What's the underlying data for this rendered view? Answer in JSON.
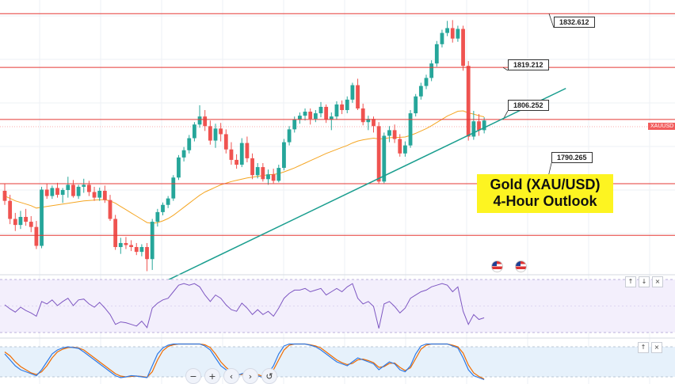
{
  "title": {
    "line1": "Gold (XAU/USD)",
    "line2": "4-Hour Outlook"
  },
  "symbol": "XAUUSD",
  "levels": [
    {
      "value": 1832.612,
      "label": "1832.612"
    },
    {
      "value": 1819.212,
      "label": "1819.212"
    },
    {
      "value": 1806.252,
      "label": "1806.252"
    },
    {
      "value": 1790.265,
      "label": "1790.265"
    },
    {
      "value": 1777.4,
      "label": ""
    }
  ],
  "colors": {
    "up": "#26a69a",
    "down": "#ef5350",
    "level": "#e53935",
    "trendline": "#1a9e8f",
    "ma": "#f5a623",
    "rsi": "#7e57c2",
    "stoch_k": "#2f7ae5",
    "stoch_d": "#ef6c00"
  },
  "nav_buttons": [
    {
      "name": "zoom-out-button",
      "icon": "minus-icon",
      "glyph": "−"
    },
    {
      "name": "zoom-in-button",
      "icon": "plus-icon",
      "glyph": "+"
    },
    {
      "name": "scroll-left-button",
      "icon": "chevron-left-icon",
      "glyph": "‹"
    },
    {
      "name": "scroll-right-button",
      "icon": "chevron-right-icon",
      "glyph": "›"
    },
    {
      "name": "reset-button",
      "icon": "reset-icon",
      "glyph": "↺"
    }
  ],
  "pane_buttons": {
    "up": "↑",
    "down": "↓",
    "close": "×"
  },
  "chart_data": {
    "type": "candlestick",
    "price_range": [
      1768,
      1836
    ],
    "candles": [
      [
        1788.5,
        1790.2,
        1785.0,
        1786.0
      ],
      [
        1786.0,
        1787.5,
        1780.2,
        1781.5
      ],
      [
        1781.5,
        1783.0,
        1778.5,
        1780.0
      ],
      [
        1780.0,
        1783.5,
        1779.0,
        1782.0
      ],
      [
        1782.0,
        1784.0,
        1779.8,
        1780.8
      ],
      [
        1780.8,
        1782.2,
        1778.2,
        1779.5
      ],
      [
        1779.5,
        1781.0,
        1774.0,
        1774.8
      ],
      [
        1774.8,
        1789.5,
        1774.2,
        1788.8
      ],
      [
        1788.8,
        1790.2,
        1786.5,
        1787.2
      ],
      [
        1787.2,
        1789.8,
        1786.5,
        1789.2
      ],
      [
        1789.2,
        1790.5,
        1786.8,
        1787.5
      ],
      [
        1787.5,
        1789.2,
        1785.5,
        1788.7
      ],
      [
        1788.7,
        1792.0,
        1786.8,
        1790.0
      ],
      [
        1790.0,
        1791.2,
        1786.8,
        1787.2
      ],
      [
        1787.2,
        1790.0,
        1786.5,
        1789.5
      ],
      [
        1789.5,
        1791.5,
        1788.0,
        1790.0
      ],
      [
        1790.0,
        1791.0,
        1787.2,
        1788.2
      ],
      [
        1788.2,
        1789.5,
        1786.0,
        1786.8
      ],
      [
        1786.8,
        1789.3,
        1786.0,
        1788.5
      ],
      [
        1788.5,
        1789.8,
        1785.5,
        1786.2
      ],
      [
        1786.2,
        1787.5,
        1781.0,
        1781.5
      ],
      [
        1781.5,
        1782.5,
        1773.8,
        1774.5
      ],
      [
        1774.5,
        1776.8,
        1772.8,
        1775.5
      ],
      [
        1775.5,
        1777.0,
        1774.0,
        1775.0
      ],
      [
        1775.0,
        1776.2,
        1773.5,
        1774.5
      ],
      [
        1774.5,
        1775.5,
        1772.5,
        1773.3
      ],
      [
        1773.3,
        1775.2,
        1772.2,
        1774.5
      ],
      [
        1774.5,
        1775.5,
        1768.5,
        1771.5
      ],
      [
        1771.5,
        1781.5,
        1768.8,
        1780.8
      ],
      [
        1780.8,
        1784.0,
        1779.6,
        1783.2
      ],
      [
        1783.2,
        1785.6,
        1782.4,
        1785.0
      ],
      [
        1785.0,
        1787.2,
        1784.2,
        1786.6
      ],
      [
        1786.6,
        1792.4,
        1786.0,
        1791.8
      ],
      [
        1791.8,
        1797.4,
        1791.2,
        1796.8
      ],
      [
        1796.8,
        1799.4,
        1795.8,
        1798.6
      ],
      [
        1798.6,
        1802.4,
        1797.8,
        1801.6
      ],
      [
        1801.6,
        1805.6,
        1800.8,
        1805.0
      ],
      [
        1805.0,
        1809.8,
        1804.2,
        1807.0
      ],
      [
        1807.0,
        1808.6,
        1803.4,
        1804.6
      ],
      [
        1804.6,
        1806.0,
        1800.0,
        1801.0
      ],
      [
        1801.0,
        1805.2,
        1799.2,
        1804.0
      ],
      [
        1804.0,
        1805.4,
        1800.8,
        1802.6
      ],
      [
        1802.6,
        1803.8,
        1797.8,
        1798.8
      ],
      [
        1798.8,
        1800.6,
        1795.0,
        1796.2
      ],
      [
        1796.2,
        1797.6,
        1794.0,
        1795.0
      ],
      [
        1795.0,
        1801.6,
        1794.4,
        1800.4
      ],
      [
        1800.4,
        1802.0,
        1795.6,
        1796.6
      ],
      [
        1796.6,
        1797.8,
        1791.4,
        1792.4
      ],
      [
        1792.4,
        1795.4,
        1791.6,
        1794.4
      ],
      [
        1794.4,
        1795.4,
        1790.8,
        1791.4
      ],
      [
        1791.4,
        1793.8,
        1790.0,
        1792.6
      ],
      [
        1792.6,
        1794.0,
        1790.4,
        1791.0
      ],
      [
        1791.0,
        1795.0,
        1790.6,
        1794.2
      ],
      [
        1794.2,
        1801.4,
        1793.6,
        1800.6
      ],
      [
        1800.6,
        1804.6,
        1799.8,
        1803.8
      ],
      [
        1803.8,
        1807.0,
        1803.0,
        1806.2
      ],
      [
        1806.2,
        1808.0,
        1805.2,
        1807.2
      ],
      [
        1807.2,
        1809.0,
        1806.0,
        1808.2
      ],
      [
        1808.2,
        1809.0,
        1805.0,
        1806.4
      ],
      [
        1806.4,
        1808.6,
        1805.6,
        1807.8
      ],
      [
        1807.8,
        1810.6,
        1806.8,
        1809.4
      ],
      [
        1809.4,
        1810.0,
        1805.4,
        1806.2
      ],
      [
        1806.2,
        1808.0,
        1803.6,
        1807.0
      ],
      [
        1807.0,
        1810.8,
        1806.2,
        1810.0
      ],
      [
        1810.0,
        1811.0,
        1807.6,
        1808.6
      ],
      [
        1808.6,
        1812.0,
        1807.8,
        1811.2
      ],
      [
        1811.2,
        1815.4,
        1810.4,
        1814.8
      ],
      [
        1814.8,
        1816.4,
        1808.6,
        1809.0
      ],
      [
        1809.0,
        1810.2,
        1804.8,
        1805.6
      ],
      [
        1805.6,
        1807.2,
        1803.6,
        1806.4
      ],
      [
        1806.4,
        1807.0,
        1803.0,
        1804.6
      ],
      [
        1804.6,
        1805.6,
        1790.2,
        1790.8
      ],
      [
        1790.8,
        1803.0,
        1790.4,
        1802.2
      ],
      [
        1802.2,
        1804.6,
        1800.6,
        1803.6
      ],
      [
        1803.6,
        1805.0,
        1800.4,
        1801.4
      ],
      [
        1801.4,
        1802.6,
        1797.0,
        1797.8
      ],
      [
        1797.8,
        1800.8,
        1797.0,
        1799.8
      ],
      [
        1799.8,
        1808.6,
        1799.2,
        1807.8
      ],
      [
        1807.8,
        1812.6,
        1807.0,
        1812.0
      ],
      [
        1812.0,
        1815.4,
        1811.2,
        1814.6
      ],
      [
        1814.6,
        1817.4,
        1813.8,
        1816.6
      ],
      [
        1816.6,
        1821.0,
        1815.8,
        1820.2
      ],
      [
        1820.2,
        1825.8,
        1819.4,
        1825.0
      ],
      [
        1825.0,
        1828.6,
        1824.2,
        1827.8
      ],
      [
        1827.8,
        1830.8,
        1827.0,
        1829.0
      ],
      [
        1829.0,
        1831.0,
        1825.4,
        1826.4
      ],
      [
        1826.4,
        1829.6,
        1825.6,
        1828.8
      ],
      [
        1828.8,
        1829.6,
        1818.4,
        1819.6
      ],
      [
        1819.6,
        1820.8,
        1801.0,
        1802.0
      ],
      [
        1802.0,
        1808.4,
        1801.2,
        1805.8
      ],
      [
        1805.8,
        1807.6,
        1802.2,
        1803.6
      ],
      [
        1803.6,
        1806.8,
        1802.8,
        1806.0
      ]
    ],
    "ma": [
      1787.2,
      1786.6,
      1786.0,
      1785.6,
      1785.2,
      1784.8,
      1784.2,
      1784.4,
      1784.6,
      1784.8,
      1785.0,
      1785.2,
      1785.4,
      1785.6,
      1785.8,
      1786.0,
      1786.1,
      1786.2,
      1786.3,
      1786.3,
      1786.0,
      1785.4,
      1784.6,
      1783.8,
      1783.0,
      1782.2,
      1781.4,
      1780.6,
      1780.4,
      1780.6,
      1781.0,
      1781.6,
      1782.4,
      1783.4,
      1784.4,
      1785.4,
      1786.4,
      1787.4,
      1788.2,
      1788.8,
      1789.4,
      1790.0,
      1790.4,
      1790.8,
      1791.1,
      1791.4,
      1791.7,
      1791.9,
      1792.1,
      1792.3,
      1792.5,
      1792.6,
      1792.8,
      1793.2,
      1793.7,
      1794.2,
      1794.8,
      1795.4,
      1796.0,
      1796.6,
      1797.2,
      1797.8,
      1798.3,
      1798.8,
      1799.3,
      1799.8,
      1800.4,
      1800.9,
      1801.2,
      1801.4,
      1801.6,
      1801.4,
      1801.5,
      1801.7,
      1801.8,
      1801.8,
      1801.9,
      1802.3,
      1802.8,
      1803.4,
      1804.0,
      1804.7,
      1805.5,
      1806.3,
      1807.1,
      1807.7,
      1808.3,
      1808.4,
      1807.9,
      1807.6,
      1807.2,
      1806.9
    ],
    "trendline": {
      "start_index": 30.5,
      "start_value": 1766.0,
      "end_index": 106.5,
      "end_value": 1814.0
    },
    "rsi": [
      54,
      49,
      45,
      51,
      47,
      44,
      40,
      58,
      55,
      60,
      53,
      58,
      62,
      53,
      60,
      61,
      55,
      51,
      57,
      50,
      42,
      30,
      33,
      32,
      30,
      28,
      34,
      26,
      50,
      56,
      60,
      62,
      70,
      78,
      80,
      78,
      80,
      76,
      66,
      58,
      66,
      62,
      54,
      48,
      46,
      56,
      50,
      42,
      48,
      42,
      46,
      40,
      50,
      62,
      68,
      72,
      72,
      74,
      70,
      72,
      74,
      66,
      70,
      74,
      70,
      76,
      80,
      62,
      55,
      58,
      52,
      25,
      55,
      58,
      52,
      44,
      50,
      62,
      66,
      70,
      72,
      76,
      78,
      80,
      78,
      70,
      76,
      46,
      30,
      42,
      36,
      38
    ],
    "stoch_k": [
      70,
      55,
      40,
      30,
      25,
      20,
      15,
      30,
      50,
      70,
      80,
      85,
      88,
      86,
      84,
      75,
      65,
      55,
      45,
      35,
      25,
      15,
      10,
      12,
      15,
      14,
      12,
      10,
      40,
      70,
      85,
      92,
      95,
      95,
      95,
      95,
      95,
      95,
      90,
      80,
      60,
      40,
      30,
      20,
      15,
      20,
      25,
      20,
      15,
      10,
      20,
      40,
      70,
      90,
      95,
      95,
      95,
      95,
      92,
      88,
      80,
      70,
      60,
      50,
      45,
      40,
      50,
      60,
      55,
      50,
      45,
      30,
      40,
      50,
      45,
      30,
      25,
      40,
      70,
      90,
      95,
      95,
      95,
      95,
      95,
      90,
      85,
      60,
      30,
      15,
      10,
      5
    ],
    "stoch_d": [
      75,
      65,
      50,
      38,
      30,
      22,
      18,
      25,
      40,
      60,
      75,
      82,
      86,
      87,
      85,
      80,
      70,
      60,
      50,
      40,
      30,
      20,
      14,
      12,
      13,
      14,
      13,
      11,
      25,
      55,
      78,
      89,
      93,
      95,
      95,
      95,
      95,
      95,
      93,
      86,
      70,
      50,
      36,
      25,
      18,
      18,
      22,
      22,
      18,
      13,
      15,
      30,
      55,
      80,
      92,
      95,
      95,
      95,
      93,
      90,
      85,
      75,
      65,
      55,
      48,
      43,
      46,
      55,
      57,
      53,
      48,
      36,
      38,
      46,
      47,
      36,
      28,
      35,
      58,
      82,
      92,
      95,
      95,
      95,
      95,
      92,
      88,
      72,
      42,
      22,
      13,
      7
    ]
  }
}
